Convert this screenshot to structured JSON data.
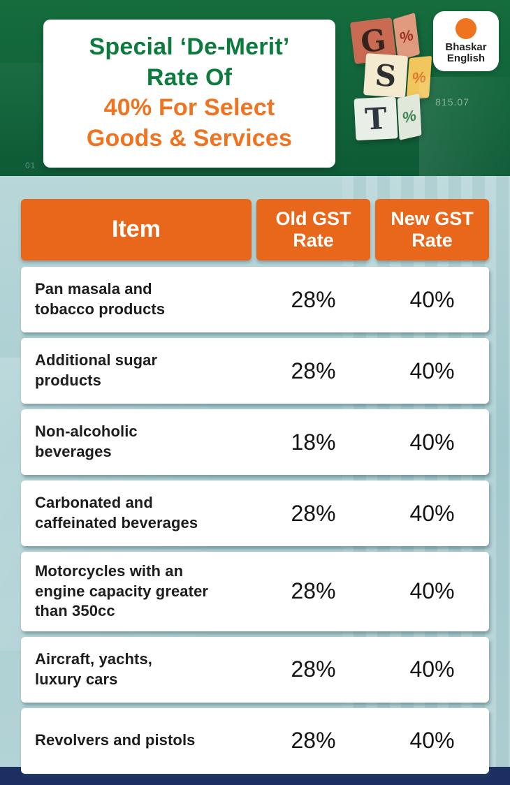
{
  "header": {
    "title_green_line1": "Special ‘De-Merit’",
    "title_green_line2": "Rate Of",
    "title_orange_line1": "40% For Select",
    "title_orange_line2": "Goods & Services",
    "background_numbers": [
      "815.07",
      "01"
    ],
    "cubes": [
      {
        "letter": "G",
        "percent": "%"
      },
      {
        "letter": "S",
        "percent": "%"
      },
      {
        "letter": "T",
        "percent": "%"
      }
    ],
    "logo_line1": "Bhaskar",
    "logo_line2": "English"
  },
  "table": {
    "columns": [
      {
        "label": "Item"
      },
      {
        "label": "Old GST\nRate"
      },
      {
        "label": "New GST\nRate"
      }
    ],
    "rows": [
      {
        "item": "Pan masala and\ntobacco products",
        "old": "28%",
        "new": "40%"
      },
      {
        "item": "Additional sugar\nproducts",
        "old": "28%",
        "new": "40%"
      },
      {
        "item": "Non-alcoholic\nbeverages",
        "old": "18%",
        "new": "40%"
      },
      {
        "item": "Carbonated and\ncaffeinated beverages",
        "old": "28%",
        "new": "40%"
      },
      {
        "item": "Motorcycles with an\nengine capacity greater\nthan 350cc",
        "old": "28%",
        "new": "40%"
      },
      {
        "item": "Aircraft, yachts,\nluxury cars",
        "old": "28%",
        "new": "40%"
      },
      {
        "item": "Revolvers and pistols",
        "old": "28%",
        "new": "40%"
      }
    ]
  },
  "chart_data": {
    "type": "table",
    "title": "Special ‘De-Merit’ Rate Of 40% For Select Goods & Services",
    "columns": [
      "Item",
      "Old GST Rate",
      "New GST Rate"
    ],
    "rows": [
      [
        "Pan masala and tobacco products",
        "28%",
        "40%"
      ],
      [
        "Additional sugar products",
        "28%",
        "40%"
      ],
      [
        "Non-alcoholic beverages",
        "18%",
        "40%"
      ],
      [
        "Carbonated and caffeinated beverages",
        "28%",
        "40%"
      ],
      [
        "Motorcycles with an engine capacity greater than 350cc",
        "28%",
        "40%"
      ],
      [
        "Aircraft, yachts, luxury cars",
        "28%",
        "40%"
      ],
      [
        "Revolvers and pistols",
        "28%",
        "40%"
      ]
    ]
  },
  "colors": {
    "header_green": "#156c3c",
    "title_green": "#0d7a3e",
    "accent_orange": "#e9671b",
    "title_orange": "#f0731f",
    "body_teal": "#aecdd1",
    "footer_navy": "#1d2e63",
    "row_white": "#ffffff",
    "text_dark": "#1d1d1d"
  }
}
